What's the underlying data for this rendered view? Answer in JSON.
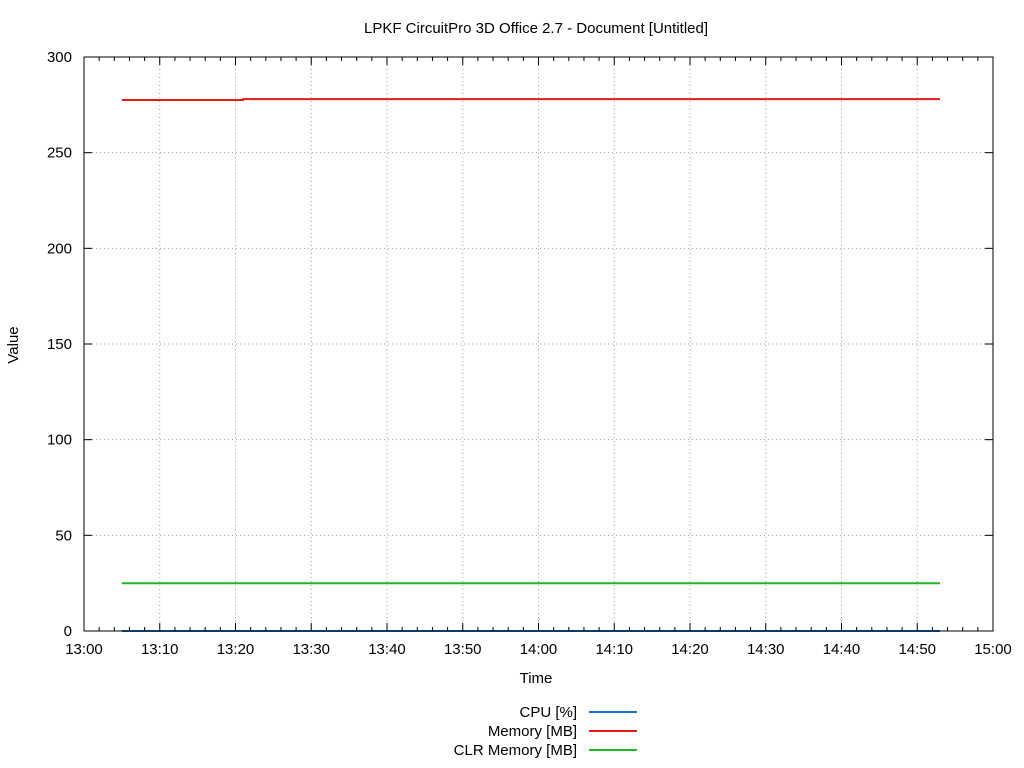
{
  "chart_data": {
    "type": "line",
    "title": "LPKF CircuitPro 3D Office 2.7 - Document [Untitled]",
    "xlabel": "Time",
    "ylabel": "Value",
    "xlim": [
      "13:00",
      "15:00"
    ],
    "ylim": [
      0,
      300
    ],
    "x_ticks": [
      "13:00",
      "13:10",
      "13:20",
      "13:30",
      "13:40",
      "13:50",
      "14:00",
      "14:10",
      "14:20",
      "14:30",
      "14:40",
      "14:50",
      "15:00"
    ],
    "y_ticks": [
      0,
      50,
      100,
      150,
      200,
      250,
      300
    ],
    "minor_ticks_per_major_x": 5,
    "grid": true,
    "legend_position": "bottom-center",
    "series": [
      {
        "name": "CPU [%]",
        "color": "#1874cd",
        "points": [
          {
            "x": "13:05",
            "y": 0
          },
          {
            "x": "14:53",
            "y": 0
          }
        ]
      },
      {
        "name": "Memory [MB]",
        "color": "#e41a1c",
        "points": [
          {
            "x": "13:05",
            "y": 277.5
          },
          {
            "x": "13:21",
            "y": 277.5
          },
          {
            "x": "13:21",
            "y": 278
          },
          {
            "x": "14:53",
            "y": 278
          }
        ]
      },
      {
        "name": "CLR Memory [MB]",
        "color": "#1fb71f",
        "points": [
          {
            "x": "13:05",
            "y": 25
          },
          {
            "x": "14:53",
            "y": 25
          }
        ]
      }
    ]
  }
}
